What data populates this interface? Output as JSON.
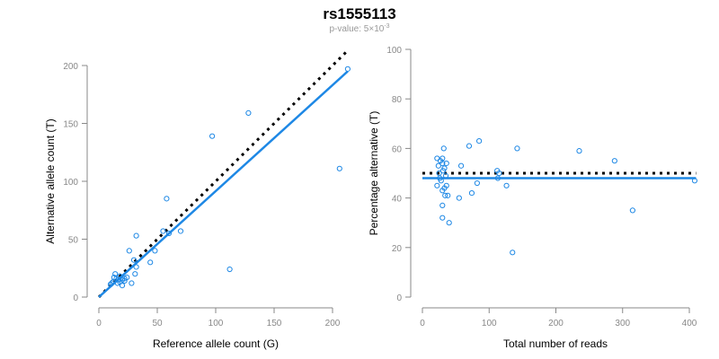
{
  "title": "rs1555113",
  "subtitle_prefix": "p-value: 5×10",
  "subtitle_exp": "-3",
  "colors": {
    "points": "#1e88e5",
    "fit": "#1e88e5",
    "reference": "#000000",
    "axis": "#888888"
  },
  "chart_data": [
    {
      "type": "scatter",
      "xlabel": "Reference allele count (G)",
      "ylabel": "Alternative allele count (T)",
      "xlim": [
        0,
        210
      ],
      "ylim": [
        0,
        200
      ],
      "xticks": [
        0,
        50,
        100,
        150,
        200
      ],
      "yticks": [
        0,
        50,
        100,
        150,
        200
      ],
      "points": [
        [
          213,
          197
        ],
        [
          128,
          159
        ],
        [
          97,
          139
        ],
        [
          206,
          111
        ],
        [
          112,
          24
        ],
        [
          58,
          85
        ],
        [
          55,
          57
        ],
        [
          70,
          57
        ],
        [
          60,
          55
        ],
        [
          32,
          53
        ],
        [
          26,
          40
        ],
        [
          48,
          40
        ],
        [
          44,
          30
        ],
        [
          30,
          32
        ],
        [
          32,
          26
        ],
        [
          31,
          20
        ],
        [
          28,
          12
        ],
        [
          22,
          14
        ],
        [
          18,
          18
        ],
        [
          14,
          20
        ],
        [
          20,
          15
        ],
        [
          16,
          12
        ],
        [
          12,
          13
        ],
        [
          10,
          11
        ],
        [
          24,
          17
        ],
        [
          20,
          10
        ],
        [
          15,
          16
        ],
        [
          13,
          17
        ],
        [
          18,
          13
        ],
        [
          22,
          16
        ],
        [
          17,
          15
        ],
        [
          11,
          12
        ]
      ],
      "fit_line": {
        "x": [
          0,
          213
        ],
        "y": [
          0,
          195
        ]
      },
      "reference_line": {
        "x": [
          0,
          213
        ],
        "y": [
          0,
          213
        ]
      }
    },
    {
      "type": "scatter",
      "xlabel": "Total number of reads",
      "ylabel": "Percentage alternative (T)",
      "xlim": [
        0,
        400
      ],
      "ylim": [
        0,
        100
      ],
      "xticks": [
        0,
        100,
        200,
        300,
        400
      ],
      "yticks": [
        0,
        20,
        40,
        60,
        80,
        100
      ],
      "points": [
        [
          408,
          47
        ],
        [
          315,
          35
        ],
        [
          288,
          55
        ],
        [
          235,
          59
        ],
        [
          142,
          60
        ],
        [
          135,
          18
        ],
        [
          126,
          45
        ],
        [
          112,
          51
        ],
        [
          113,
          48
        ],
        [
          115,
          50
        ],
        [
          85,
          63
        ],
        [
          82,
          46
        ],
        [
          74,
          42
        ],
        [
          70,
          61
        ],
        [
          58,
          53
        ],
        [
          55,
          40
        ],
        [
          40,
          30
        ],
        [
          32,
          60
        ],
        [
          22,
          56
        ],
        [
          24,
          53
        ],
        [
          27,
          55
        ],
        [
          30,
          54
        ],
        [
          33,
          52
        ],
        [
          30,
          56
        ],
        [
          31,
          51
        ],
        [
          35,
          49
        ],
        [
          25,
          50
        ],
        [
          22,
          45
        ],
        [
          28,
          47
        ],
        [
          33,
          44
        ],
        [
          36,
          45
        ],
        [
          30,
          43
        ],
        [
          34,
          41
        ],
        [
          38,
          41
        ],
        [
          30,
          37
        ],
        [
          30,
          32
        ],
        [
          26,
          48
        ],
        [
          36,
          54
        ]
      ],
      "fit_line": {
        "x": [
          0,
          410
        ],
        "y": [
          48,
          48
        ]
      },
      "reference_line": {
        "x": [
          0,
          410
        ],
        "y": [
          50,
          50
        ]
      }
    }
  ]
}
